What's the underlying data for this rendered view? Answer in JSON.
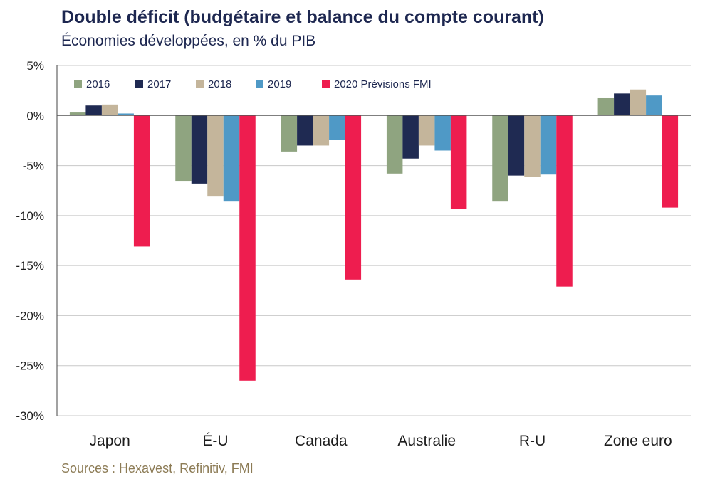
{
  "title": "Double déficit  (budgétaire et balance du compte courant)",
  "subtitle": "Économies développées, en % du PIB",
  "source": "Sources : Hexavest, Refinitiv, FMI",
  "chart_data": {
    "type": "bar",
    "categories": [
      "Japon",
      "É-U",
      "Canada",
      "Australie",
      "R-U",
      "Zone euro"
    ],
    "series": [
      {
        "name": "2016",
        "color": "#8fa480",
        "values": [
          0.3,
          -6.6,
          -3.6,
          -5.8,
          -8.6,
          1.8
        ]
      },
      {
        "name": "2017",
        "color": "#1f2a52",
        "values": [
          1.0,
          -6.8,
          -3.0,
          -4.3,
          -6.0,
          2.2
        ]
      },
      {
        "name": "2018",
        "color": "#c4b59b",
        "values": [
          1.1,
          -8.1,
          -3.0,
          -3.0,
          -6.1,
          2.6
        ]
      },
      {
        "name": "2019",
        "color": "#4f99c6",
        "values": [
          0.2,
          -8.6,
          -2.4,
          -3.5,
          -5.9,
          2.0
        ]
      },
      {
        "name": "2020 Prévisions FMI",
        "color": "#ee1d4f",
        "values": [
          -13.1,
          -26.5,
          -16.4,
          -9.3,
          -17.1,
          -9.2
        ]
      }
    ],
    "yticks": [
      "5%",
      "0%",
      "-5%",
      "-10%",
      "-15%",
      "-20%",
      "-25%",
      "-30%"
    ],
    "ytick_values": [
      5,
      0,
      -5,
      -10,
      -15,
      -20,
      -25,
      -30
    ],
    "ylim": [
      -30,
      5
    ],
    "grid": true,
    "legend": "top"
  }
}
